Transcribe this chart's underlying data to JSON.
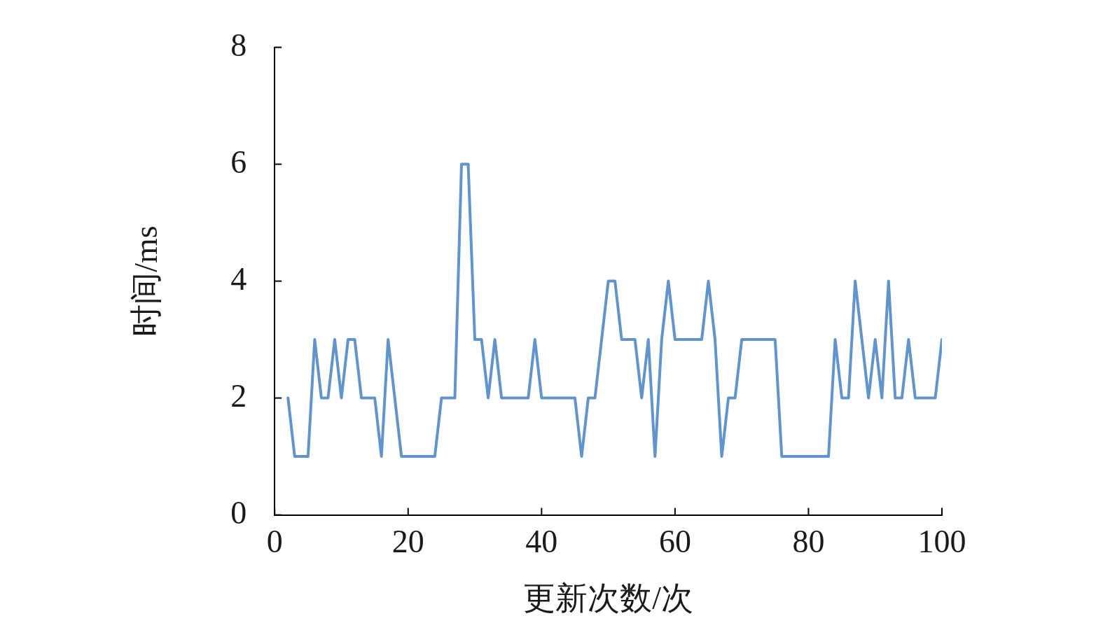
{
  "chart_data": {
    "type": "line",
    "xlabel": "更新次数/次",
    "ylabel": "时间/ms",
    "x": [
      2,
      3,
      4,
      5,
      6,
      7,
      8,
      9,
      10,
      11,
      12,
      13,
      14,
      15,
      16,
      17,
      18,
      19,
      20,
      21,
      22,
      23,
      24,
      25,
      26,
      27,
      28,
      29,
      30,
      31,
      32,
      33,
      34,
      35,
      36,
      37,
      38,
      39,
      40,
      41,
      42,
      43,
      44,
      45,
      46,
      47,
      48,
      49,
      50,
      51,
      52,
      53,
      54,
      55,
      56,
      57,
      58,
      59,
      60,
      61,
      62,
      63,
      64,
      65,
      66,
      67,
      68,
      69,
      70,
      71,
      72,
      73,
      74,
      75,
      76,
      77,
      78,
      79,
      80,
      81,
      82,
      83,
      84,
      85,
      86,
      87,
      88,
      89,
      90,
      91,
      92,
      93,
      94,
      95,
      96,
      97,
      98,
      99,
      100
    ],
    "series": [
      {
        "color": "#6193cc",
        "values": [
          2,
          1,
          1,
          1,
          3,
          2,
          2,
          3,
          2,
          3,
          3,
          2,
          2,
          2,
          1,
          3,
          2,
          1,
          1,
          1,
          1,
          1,
          1,
          2,
          2,
          2,
          6,
          6,
          3,
          3,
          2,
          3,
          2,
          2,
          2,
          2,
          2,
          3,
          2,
          2,
          2,
          2,
          2,
          2,
          1,
          2,
          2,
          3,
          4,
          4,
          3,
          3,
          3,
          2,
          3,
          1,
          3,
          4,
          3,
          3,
          3,
          3,
          3,
          4,
          3,
          1,
          2,
          2,
          3,
          3,
          3,
          3,
          3,
          3,
          1,
          1,
          1,
          1,
          1,
          1,
          1,
          1,
          3,
          2,
          2,
          4,
          3,
          2,
          3,
          2,
          4,
          2,
          2,
          3,
          2,
          2,
          2,
          2,
          3
        ]
      }
    ],
    "xlim": [
      0,
      100
    ],
    "xticks": [
      0,
      20,
      40,
      60,
      80,
      100
    ],
    "ylim": [
      0,
      8
    ],
    "yticks": [
      0,
      2,
      4,
      6,
      8
    ],
    "grid": false,
    "legend": false,
    "marker": "none",
    "line_style": "solid"
  }
}
